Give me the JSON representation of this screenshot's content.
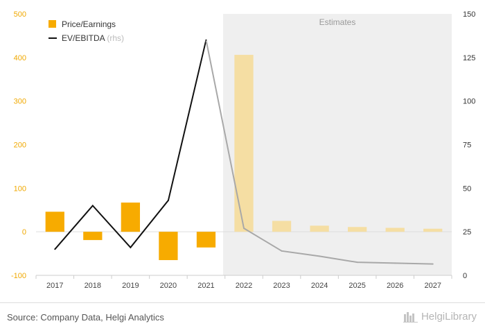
{
  "chart_data": {
    "type": "bar+line",
    "categories": [
      "2017",
      "2018",
      "2019",
      "2020",
      "2021",
      "2022",
      "2023",
      "2024",
      "2025",
      "2026",
      "2027"
    ],
    "series": [
      {
        "name": "Price/Earnings",
        "axis": "left",
        "kind": "bar",
        "values": [
          46,
          -19,
          67,
          -65,
          -36,
          406,
          25,
          14,
          11,
          9,
          7
        ]
      },
      {
        "name": "EV/EBITDA",
        "note": "(rhs)",
        "axis": "right",
        "kind": "line",
        "values": [
          15,
          40,
          16,
          43,
          135,
          27,
          14,
          11,
          7.5,
          7,
          6.5
        ]
      }
    ],
    "estimates_label": "Estimates",
    "estimates_from": "2022",
    "y_left": {
      "min": -100,
      "max": 500,
      "ticks": [
        500,
        400,
        300,
        200,
        100,
        0,
        -100
      ]
    },
    "y_right": {
      "min": 0,
      "max": 150,
      "ticks": [
        150,
        125,
        100,
        75,
        50,
        25,
        0
      ]
    },
    "colors": {
      "bar": "#f7ab00",
      "bar_estimate": "#f5dea3",
      "line": "#111111",
      "line_estimate": "#a8a8a8",
      "estimate_band": "#efefef"
    }
  },
  "footer": {
    "source": "Source: Company Data, Helgi Analytics",
    "brand": "HelgiLibrary"
  }
}
